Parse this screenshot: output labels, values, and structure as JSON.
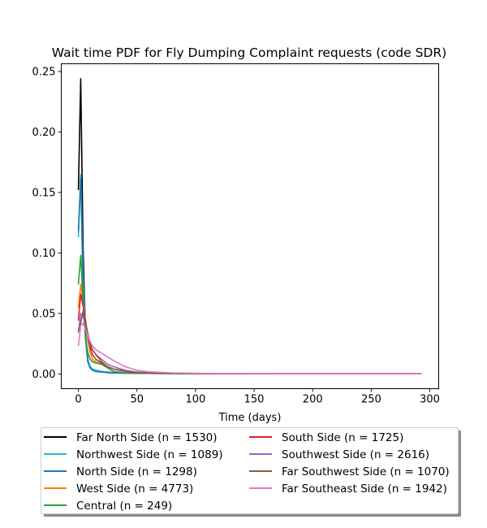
{
  "chart_data": {
    "type": "line",
    "title": "Wait time PDF for Fly Dumping Complaint  requests (code SDR)",
    "xlabel": "Time (days)",
    "ylabel": "",
    "xlim": [
      -14.6,
      307.6
    ],
    "ylim": [
      -0.0122,
      0.2564
    ],
    "xticks": [
      0,
      50,
      100,
      150,
      200,
      250,
      300
    ],
    "xtick_labels": [
      "0",
      "50",
      "100",
      "150",
      "200",
      "250",
      "300"
    ],
    "yticks": [
      0.0,
      0.05,
      0.1,
      0.15,
      0.2,
      0.25
    ],
    "ytick_labels": [
      "0.00",
      "0.05",
      "0.10",
      "0.15",
      "0.20",
      "0.25"
    ],
    "grid": false,
    "legend_position": "bottom-center",
    "legend_columns": 2,
    "series": [
      {
        "name": "Far North Side (n = 1530)",
        "color": "#000000",
        "x": [
          0,
          2,
          4,
          6,
          8,
          10,
          12,
          15,
          20,
          25,
          30,
          40,
          50,
          60,
          80,
          100,
          150,
          200,
          250,
          293
        ],
        "y": [
          0.152,
          0.244,
          0.105,
          0.035,
          0.012,
          0.006,
          0.004,
          0.003,
          0.002,
          0.0015,
          0.001,
          0.0007,
          0.0005,
          0.0004,
          0.0003,
          0.0002,
          0.0001,
          0.0001,
          0.0001,
          0.0001
        ]
      },
      {
        "name": "Northwest Side (n = 1089)",
        "color": "#17becf",
        "x": [
          0,
          2,
          4,
          6,
          8,
          10,
          12,
          15,
          20,
          25,
          30,
          40,
          50,
          60,
          80,
          100,
          150,
          200,
          250,
          293
        ],
        "y": [
          0.113,
          0.165,
          0.085,
          0.035,
          0.012,
          0.006,
          0.004,
          0.003,
          0.002,
          0.0015,
          0.001,
          0.0007,
          0.0005,
          0.0004,
          0.0003,
          0.0002,
          0.0001,
          0.0001,
          0.0001,
          0.0001
        ]
      },
      {
        "name": "North Side (n = 1298)",
        "color": "#1f77b4",
        "x": [
          0,
          2,
          4,
          6,
          8,
          10,
          12,
          15,
          20,
          25,
          30,
          40,
          50,
          60,
          80,
          100,
          150,
          200,
          250,
          293
        ],
        "y": [
          0.118,
          0.162,
          0.072,
          0.03,
          0.01,
          0.005,
          0.003,
          0.002,
          0.0015,
          0.001,
          0.0008,
          0.0006,
          0.0005,
          0.0004,
          0.0003,
          0.0002,
          0.0001,
          0.0001,
          0.0001,
          0.0001
        ]
      },
      {
        "name": "West Side (n = 4773)",
        "color": "#ff7f0e",
        "x": [
          0,
          2,
          4,
          6,
          8,
          10,
          12,
          15,
          20,
          25,
          30,
          40,
          50,
          60,
          80,
          100,
          150,
          200,
          250,
          293
        ],
        "y": [
          0.055,
          0.074,
          0.06,
          0.042,
          0.028,
          0.018,
          0.012,
          0.01,
          0.008,
          0.006,
          0.004,
          0.002,
          0.001,
          0.0008,
          0.0005,
          0.0003,
          0.0002,
          0.0001,
          0.0001,
          0.0001
        ]
      },
      {
        "name": "Central (n = 249)",
        "color": "#2ca02c",
        "x": [
          0,
          2,
          4,
          6,
          8,
          10,
          12,
          15,
          20,
          25,
          30,
          40,
          50,
          60,
          80,
          100,
          150,
          200,
          250,
          293
        ],
        "y": [
          0.074,
          0.098,
          0.06,
          0.03,
          0.018,
          0.012,
          0.01,
          0.009,
          0.008,
          0.005,
          0.002,
          0.0008,
          0.0005,
          0.0004,
          0.0003,
          0.0002,
          0.0001,
          0.0001,
          0.0001,
          0.0001
        ]
      },
      {
        "name": "South Side (n = 1725)",
        "color": "#d62728",
        "x": [
          0,
          2,
          4,
          6,
          8,
          10,
          12,
          15,
          20,
          25,
          30,
          40,
          50,
          60,
          80,
          100,
          150,
          200,
          250,
          293
        ],
        "y": [
          0.044,
          0.066,
          0.056,
          0.045,
          0.032,
          0.022,
          0.016,
          0.012,
          0.009,
          0.006,
          0.004,
          0.0025,
          0.0015,
          0.001,
          0.0006,
          0.0004,
          0.0002,
          0.0001,
          0.0001,
          0.0001
        ]
      },
      {
        "name": "Southwest Side (n = 2616)",
        "color": "#9467bd",
        "x": [
          0,
          2,
          4,
          6,
          8,
          10,
          12,
          15,
          20,
          25,
          30,
          40,
          50,
          60,
          80,
          100,
          150,
          200,
          250,
          293
        ],
        "y": [
          0.034,
          0.05,
          0.048,
          0.04,
          0.032,
          0.025,
          0.02,
          0.016,
          0.012,
          0.008,
          0.006,
          0.003,
          0.0015,
          0.001,
          0.0006,
          0.0004,
          0.0002,
          0.0001,
          0.0001,
          0.0001
        ]
      },
      {
        "name": "Far Southwest Side (n = 1070)",
        "color": "#8c564b",
        "x": [
          0,
          2,
          4,
          6,
          8,
          10,
          12,
          15,
          20,
          25,
          30,
          40,
          50,
          60,
          80,
          100,
          150,
          200,
          250,
          293
        ],
        "y": [
          0.035,
          0.042,
          0.052,
          0.042,
          0.034,
          0.025,
          0.02,
          0.016,
          0.01,
          0.006,
          0.004,
          0.002,
          0.001,
          0.0008,
          0.0005,
          0.0003,
          0.0002,
          0.0001,
          0.0001,
          0.0001
        ]
      },
      {
        "name": "Far Southeast Side (n = 1942)",
        "color": "#e377c2",
        "x": [
          0,
          2,
          4,
          6,
          8,
          10,
          12,
          15,
          20,
          25,
          30,
          40,
          50,
          60,
          80,
          100,
          150,
          200,
          250,
          293
        ],
        "y": [
          0.023,
          0.04,
          0.042,
          0.037,
          0.032,
          0.027,
          0.023,
          0.02,
          0.017,
          0.014,
          0.011,
          0.006,
          0.003,
          0.0018,
          0.0009,
          0.0005,
          0.0002,
          0.0001,
          0.0001,
          0.0001
        ]
      }
    ]
  }
}
